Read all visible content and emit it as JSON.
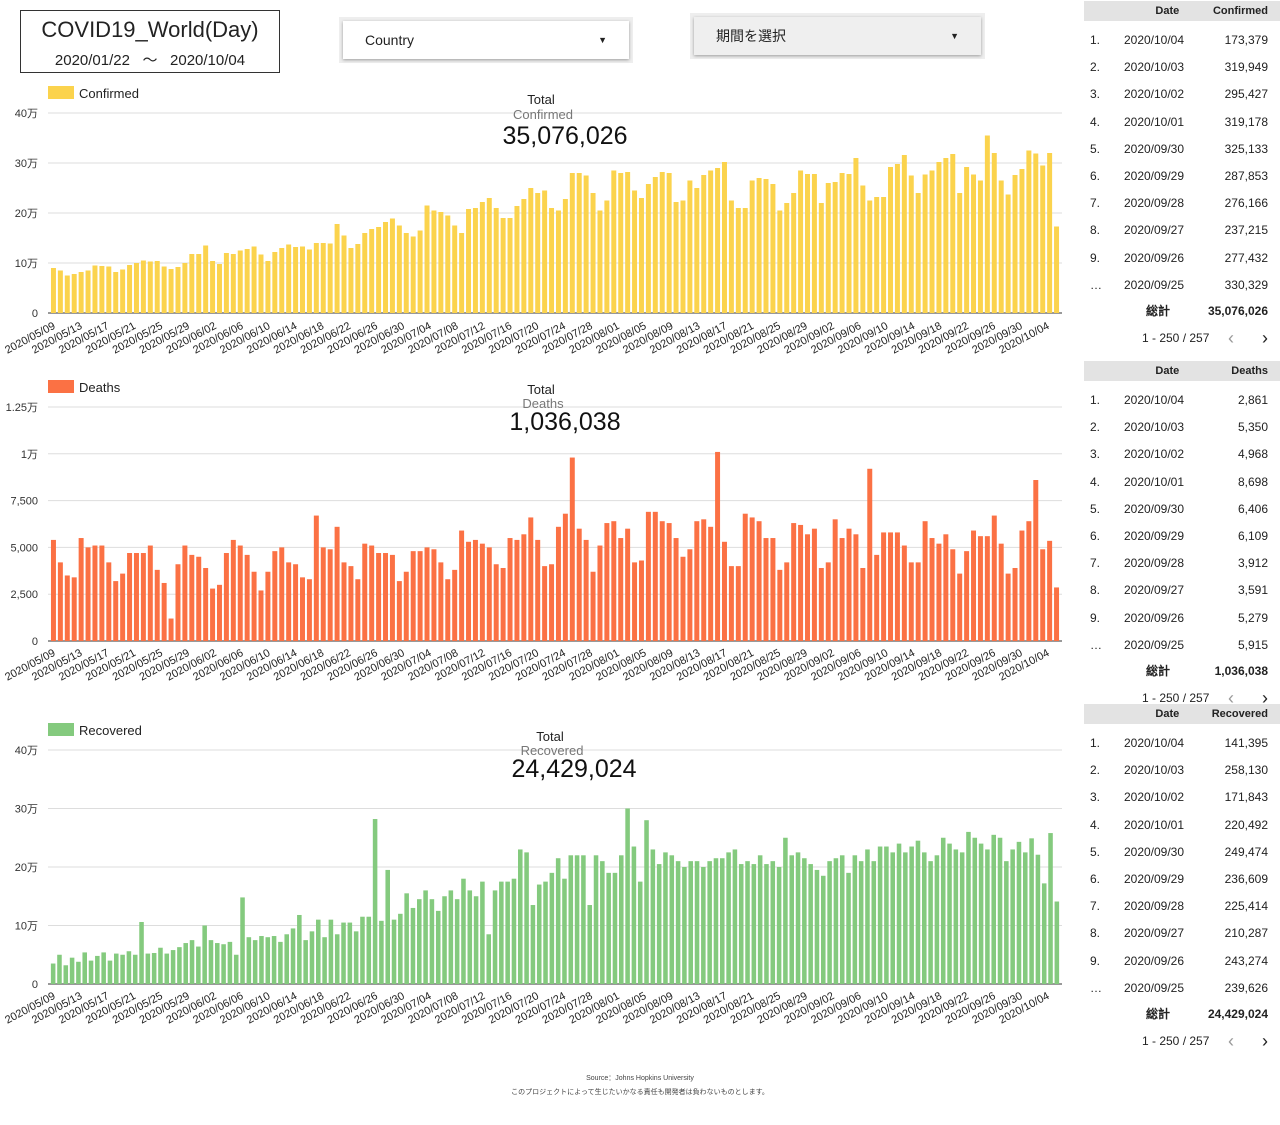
{
  "header": {
    "title": "COVID19_World(Day)",
    "date_from": "2020/01/22",
    "tilde": "〜",
    "date_to": "2020/10/04",
    "country_label": "Country",
    "period_label": "期間を選択"
  },
  "colors": {
    "confirmed": "#fbd34d",
    "deaths": "#fb7144",
    "recovered": "#84ca7e"
  },
  "x_tick_labels": [
    "2020/05/09",
    "2020/05/13",
    "2020/05/17",
    "2020/05/21",
    "2020/05/25",
    "2020/05/29",
    "2020/06/02",
    "2020/06/06",
    "2020/06/10",
    "2020/06/14",
    "2020/06/18",
    "2020/06/22",
    "2020/06/26",
    "2020/06/30",
    "2020/07/04",
    "2020/07/08",
    "2020/07/12",
    "2020/07/16",
    "2020/07/20",
    "2020/07/24",
    "2020/07/28",
    "2020/08/01",
    "2020/08/05",
    "2020/08/09",
    "2020/08/13",
    "2020/08/17",
    "2020/08/21",
    "2020/08/25",
    "2020/08/29",
    "2020/09/02",
    "2020/09/06",
    "2020/09/10",
    "2020/09/14",
    "2020/09/18",
    "2020/09/22",
    "2020/09/26",
    "2020/09/30",
    "2020/10/04"
  ],
  "chart_data": [
    {
      "type": "bar",
      "legend": "Confirmed",
      "total_label": "Total",
      "total_sub": "Confirmed",
      "total_value": "35,076,026",
      "x_start": "2020/05/09",
      "x_end": "2020/10/04",
      "y_ticks": [
        "0",
        "10万",
        "20万",
        "30万",
        "40万"
      ],
      "ylim": [
        0,
        400000
      ],
      "values": [
        90000,
        85000,
        75000,
        78000,
        82000,
        85000,
        95000,
        94000,
        93000,
        82000,
        87000,
        96000,
        100000,
        105000,
        103000,
        104000,
        93000,
        88000,
        92000,
        100000,
        118000,
        118000,
        135000,
        104000,
        98000,
        120000,
        118000,
        125000,
        128000,
        133000,
        117000,
        104000,
        122000,
        130000,
        137000,
        132000,
        133000,
        127000,
        140000,
        140000,
        139000,
        178000,
        155000,
        130000,
        138000,
        160000,
        168000,
        172000,
        182000,
        189000,
        175000,
        160000,
        153000,
        165000,
        215000,
        205000,
        202000,
        195000,
        175000,
        160000,
        208000,
        210000,
        222000,
        230000,
        210000,
        190000,
        190000,
        214000,
        228000,
        250000,
        240000,
        245000,
        210000,
        205000,
        228000,
        280000,
        280000,
        275000,
        240000,
        205000,
        225000,
        285000,
        280000,
        282000,
        245000,
        230000,
        258000,
        272000,
        282000,
        280000,
        222000,
        225000,
        265000,
        250000,
        276000,
        285000,
        290000,
        302000,
        225000,
        210000,
        210000,
        265000,
        270000,
        268000,
        258000,
        205000,
        220000,
        240000,
        285000,
        278000,
        278000,
        220000,
        260000,
        262000,
        280000,
        278000,
        310000,
        255000,
        225000,
        232000,
        232000,
        292000,
        298000,
        316000,
        275000,
        240000,
        277000,
        285000,
        302000,
        310000,
        318000,
        240000,
        292000,
        277000,
        265000,
        355000,
        320000,
        265000,
        237000,
        276000,
        288000,
        325000,
        319000,
        295000,
        320000,
        173000
      ]
    },
    {
      "type": "bar",
      "legend": "Deaths",
      "total_label": "Total",
      "total_sub": "Deaths",
      "total_value": "1,036,038",
      "x_start": "2020/05/09",
      "x_end": "2020/10/04",
      "y_ticks": [
        "0",
        "2,500",
        "5,000",
        "7,500",
        "1万",
        "1.25万"
      ],
      "ylim": [
        0,
        12500
      ],
      "values": [
        5400,
        4200,
        3500,
        3400,
        5500,
        5000,
        5100,
        5100,
        4200,
        3200,
        3600,
        4700,
        4700,
        4700,
        5100,
        3800,
        3100,
        1200,
        4100,
        5100,
        4600,
        4500,
        3900,
        2800,
        3000,
        4700,
        5400,
        5100,
        4600,
        3700,
        2700,
        3700,
        4800,
        5000,
        4200,
        4100,
        3400,
        3300,
        6700,
        5000,
        4900,
        6100,
        4200,
        4000,
        3300,
        5200,
        5100,
        4700,
        4700,
        4600,
        3200,
        3700,
        4800,
        4800,
        5000,
        4900,
        4200,
        3300,
        3800,
        5900,
        5300,
        5400,
        5200,
        5000,
        4100,
        3900,
        5500,
        5400,
        5700,
        6600,
        5400,
        4000,
        4100,
        6100,
        6800,
        9800,
        6000,
        5400,
        3700,
        5100,
        6300,
        6400,
        5500,
        6000,
        4200,
        4300,
        6900,
        6900,
        6400,
        6300,
        5500,
        4500,
        4900,
        6400,
        6500,
        6100,
        10100,
        5300,
        4000,
        4000,
        6800,
        6600,
        6400,
        5500,
        5500,
        3800,
        4200,
        6300,
        6200,
        5700,
        6000,
        3900,
        4200,
        6500,
        5500,
        6000,
        5700,
        3900,
        9200,
        4600,
        5800,
        5800,
        5800,
        5100,
        4200,
        4200,
        6400,
        5500,
        5200,
        5700,
        4900,
        3600,
        4800,
        5900,
        5600,
        5600,
        6700,
        5200,
        3600,
        3900,
        5900,
        6400,
        8600,
        4900,
        5350,
        2861
      ]
    },
    {
      "type": "bar",
      "legend": "Recovered",
      "total_label": "Total",
      "total_sub": "Recovered",
      "total_value": "24,429,024",
      "x_start": "2020/05/09",
      "x_end": "2020/10/04",
      "y_ticks": [
        "0",
        "10万",
        "20万",
        "30万",
        "40万"
      ],
      "ylim": [
        0,
        400000
      ],
      "values": [
        35000,
        50000,
        32000,
        45000,
        38000,
        54000,
        40000,
        48000,
        54000,
        40000,
        52000,
        50000,
        56000,
        50000,
        106000,
        52000,
        53000,
        62000,
        52000,
        58000,
        63000,
        70000,
        75000,
        64000,
        100000,
        75000,
        70000,
        68000,
        72000,
        50000,
        148000,
        80000,
        75000,
        82000,
        80000,
        82000,
        72000,
        85000,
        95000,
        118000,
        75000,
        90000,
        110000,
        80000,
        110000,
        85000,
        105000,
        105000,
        90000,
        115000,
        115000,
        282000,
        108000,
        195000,
        110000,
        120000,
        155000,
        130000,
        145000,
        160000,
        145000,
        125000,
        150000,
        160000,
        145000,
        180000,
        160000,
        150000,
        175000,
        85000,
        160000,
        175000,
        175000,
        180000,
        230000,
        225000,
        135000,
        170000,
        175000,
        190000,
        215000,
        180000,
        220000,
        220000,
        220000,
        135000,
        220000,
        210000,
        190000,
        190000,
        220000,
        300000,
        235000,
        175000,
        280000,
        230000,
        205000,
        225000,
        220000,
        210000,
        200000,
        210000,
        210000,
        200000,
        210000,
        215000,
        215000,
        225000,
        230000,
        205000,
        210000,
        205000,
        220000,
        205000,
        210000,
        200000,
        250000,
        220000,
        225000,
        215000,
        205000,
        195000,
        185000,
        210000,
        215000,
        220000,
        190000,
        220000,
        210000,
        230000,
        210000,
        235000,
        235000,
        225000,
        240000,
        225000,
        235000,
        245000,
        225000,
        210000,
        220000,
        250000,
        240000,
        230000,
        225000,
        260000,
        250000,
        240000,
        230000,
        255000,
        250000,
        210000,
        230000,
        243000,
        225000,
        249000,
        221000,
        172000,
        258000,
        141000
      ]
    }
  ],
  "tables": [
    {
      "col_date": "Date",
      "col_value": "Confirmed",
      "rows": [
        {
          "idx": "1.",
          "date": "2020/10/04",
          "value": "173,379"
        },
        {
          "idx": "2.",
          "date": "2020/10/03",
          "value": "319,949"
        },
        {
          "idx": "3.",
          "date": "2020/10/02",
          "value": "295,427"
        },
        {
          "idx": "4.",
          "date": "2020/10/01",
          "value": "319,178"
        },
        {
          "idx": "5.",
          "date": "2020/09/30",
          "value": "325,133"
        },
        {
          "idx": "6.",
          "date": "2020/09/29",
          "value": "287,853"
        },
        {
          "idx": "7.",
          "date": "2020/09/28",
          "value": "276,166"
        },
        {
          "idx": "8.",
          "date": "2020/09/27",
          "value": "237,215"
        },
        {
          "idx": "9.",
          "date": "2020/09/26",
          "value": "277,432"
        },
        {
          "idx": "…",
          "date": "2020/09/25",
          "value": "330,329"
        }
      ],
      "total_label": "総計",
      "total_value": "35,076,026",
      "pager": "1 - 250 / 257"
    },
    {
      "col_date": "Date",
      "col_value": "Deaths",
      "rows": [
        {
          "idx": "1.",
          "date": "2020/10/04",
          "value": "2,861"
        },
        {
          "idx": "2.",
          "date": "2020/10/03",
          "value": "5,350"
        },
        {
          "idx": "3.",
          "date": "2020/10/02",
          "value": "4,968"
        },
        {
          "idx": "4.",
          "date": "2020/10/01",
          "value": "8,698"
        },
        {
          "idx": "5.",
          "date": "2020/09/30",
          "value": "6,406"
        },
        {
          "idx": "6.",
          "date": "2020/09/29",
          "value": "6,109"
        },
        {
          "idx": "7.",
          "date": "2020/09/28",
          "value": "3,912"
        },
        {
          "idx": "8.",
          "date": "2020/09/27",
          "value": "3,591"
        },
        {
          "idx": "9.",
          "date": "2020/09/26",
          "value": "5,279"
        },
        {
          "idx": "…",
          "date": "2020/09/25",
          "value": "5,915"
        }
      ],
      "total_label": "総計",
      "total_value": "1,036,038",
      "pager": "1 - 250 / 257"
    },
    {
      "col_date": "Date",
      "col_value": "Recovered",
      "rows": [
        {
          "idx": "1.",
          "date": "2020/10/04",
          "value": "141,395"
        },
        {
          "idx": "2.",
          "date": "2020/10/03",
          "value": "258,130"
        },
        {
          "idx": "3.",
          "date": "2020/10/02",
          "value": "171,843"
        },
        {
          "idx": "4.",
          "date": "2020/10/01",
          "value": "220,492"
        },
        {
          "idx": "5.",
          "date": "2020/09/30",
          "value": "249,474"
        },
        {
          "idx": "6.",
          "date": "2020/09/29",
          "value": "236,609"
        },
        {
          "idx": "7.",
          "date": "2020/09/28",
          "value": "225,414"
        },
        {
          "idx": "8.",
          "date": "2020/09/27",
          "value": "210,287"
        },
        {
          "idx": "9.",
          "date": "2020/09/26",
          "value": "243,274"
        },
        {
          "idx": "…",
          "date": "2020/09/25",
          "value": "239,626"
        }
      ],
      "total_label": "総計",
      "total_value": "24,429,024",
      "pager": "1 - 250 / 257"
    }
  ],
  "footer": {
    "source": "Source：Johns Hopkins University",
    "disclaimer": "このプロジェクトによって生じたいかなる責任も開発者は負わないものとします。"
  }
}
